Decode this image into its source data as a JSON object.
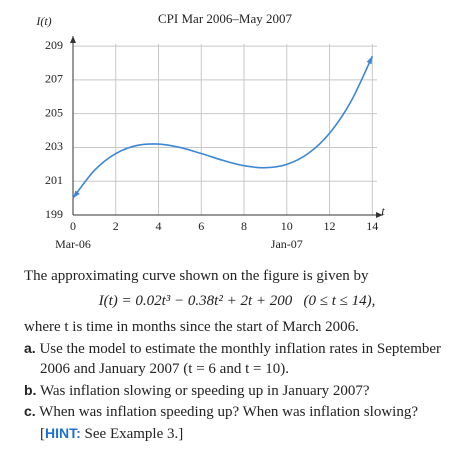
{
  "chart_data": {
    "type": "line",
    "title": "CPI Mar 2006–May 2007",
    "y_label": "I(t)",
    "x_label": "t",
    "x": [
      0,
      1,
      2,
      3,
      4,
      5,
      6,
      7,
      8,
      9,
      10,
      11,
      12,
      13,
      14
    ],
    "series": [
      {
        "color": "#3b87d6",
        "values": [
          200,
          201.64,
          202.64,
          203.12,
          203.2,
          203.0,
          202.64,
          202.24,
          201.92,
          201.8,
          202.0,
          202.64,
          203.84,
          205.72,
          208.4
        ]
      }
    ],
    "xlim": [
      0,
      14.5
    ],
    "ylim": [
      199,
      209.6
    ],
    "xticks": [
      0,
      2,
      4,
      6,
      8,
      10,
      12,
      14
    ],
    "yticks": [
      199,
      201,
      203,
      205,
      207,
      209
    ],
    "grid": true,
    "annotations": [
      {
        "x": 0,
        "text": "Mar-06"
      },
      {
        "x": 10,
        "text": "Jan-07"
      }
    ]
  },
  "problem": {
    "intro": "The approximating curve shown on the figure is given by",
    "formula": "I(t) = 0.02t³ − 0.38t² + 2t + 200   (0 ≤ t ≤ 14),",
    "where": "where t is time in months since the start of March 2006.",
    "items": [
      {
        "label": "a.",
        "text": "Use the model to estimate the monthly inflation rates in September 2006 and January 2007 (t = 6 and t = 10)."
      },
      {
        "label": "b.",
        "text": "Was inflation slowing or speeding up in January 2007?"
      },
      {
        "label": "c.",
        "text": "When was inflation speeding up? When was inflation slowing?",
        "hint_open": "[",
        "hint": "HINT:",
        "hint_text": "See Example 3.]"
      }
    ]
  }
}
